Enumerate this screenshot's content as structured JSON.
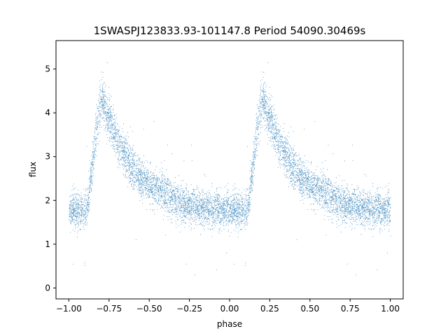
{
  "chart_data": {
    "type": "scatter",
    "title": "1SWASPJ123833.93-101147.8 Period 54090.30469s",
    "xlabel": "phase",
    "ylabel": "flux",
    "xlim": [
      -1.08,
      1.08
    ],
    "ylim": [
      -0.25,
      5.65
    ],
    "xticks": [
      -1.0,
      -0.75,
      -0.5,
      -0.25,
      0.0,
      0.25,
      0.5,
      0.75,
      1.0
    ],
    "xtick_labels": [
      "−1.00",
      "−0.75",
      "−0.50",
      "−0.25",
      "0.00",
      "0.25",
      "0.50",
      "0.75",
      "1.00"
    ],
    "yticks": [
      0,
      1,
      2,
      3,
      4,
      5
    ],
    "ytick_labels": [
      "0",
      "1",
      "2",
      "3",
      "4",
      "5"
    ],
    "grid": false,
    "point_color": "#1f77b4",
    "series": [
      {
        "points_note_free": true,
        "profile": {
          "phase": [
            0.0,
            0.1,
            0.12,
            0.15,
            0.18,
            0.2,
            0.22,
            0.25,
            0.3,
            0.35,
            0.4,
            0.45,
            0.5,
            0.55,
            0.6,
            0.65,
            0.7,
            0.75,
            0.8,
            0.85,
            0.9,
            0.95,
            1.0
          ],
          "flux": [
            1.8,
            1.75,
            2.0,
            3.0,
            3.9,
            4.3,
            4.2,
            3.85,
            3.35,
            3.0,
            2.7,
            2.5,
            2.35,
            2.25,
            2.15,
            2.05,
            1.95,
            1.9,
            1.85,
            1.82,
            1.8,
            1.78,
            1.8
          ]
        },
        "scatter_sigma": 0.22,
        "n_points_per_cycle": 5200
      }
    ]
  }
}
